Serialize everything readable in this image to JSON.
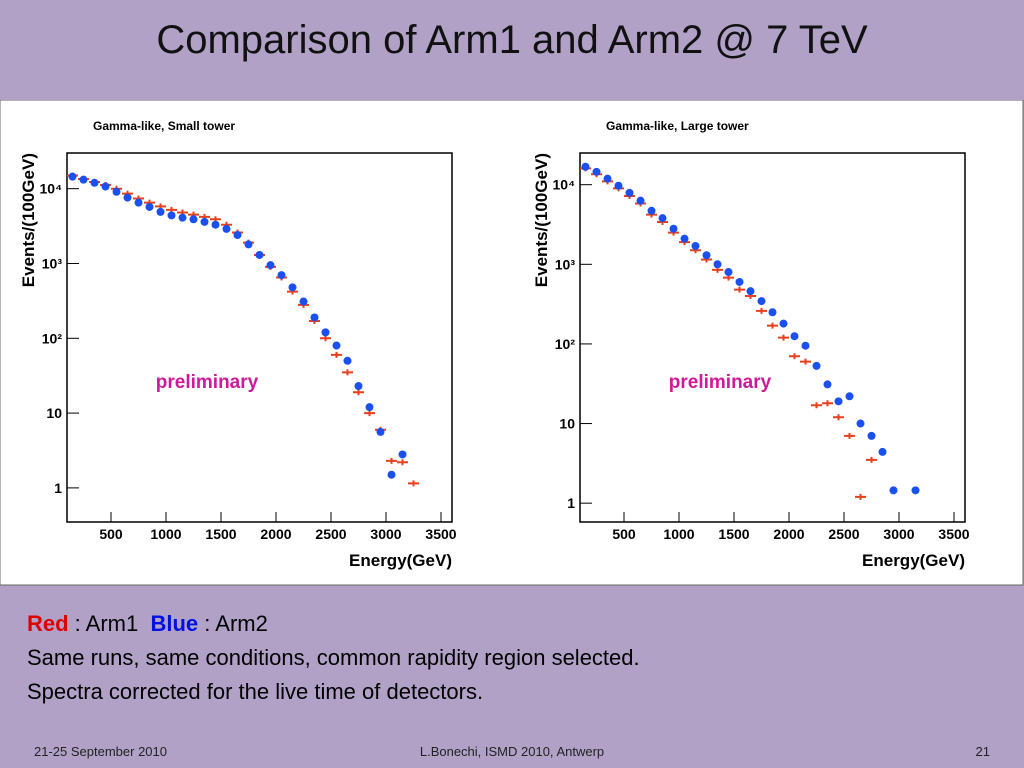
{
  "title": "Comparison of Arm1 and Arm2 @ 7 TeV",
  "chart_data": [
    {
      "type": "scatter",
      "title": "Gamma-like, Small tower",
      "x_label": "Energy(GeV)",
      "y_label": "Events/(100GeV)",
      "annotation": "preliminary",
      "log_y": true,
      "grid": false,
      "xlim": [
        100,
        3600
      ],
      "xticks": [
        500,
        1000,
        1500,
        2000,
        2500,
        3000,
        3500
      ],
      "ylim": [
        0.35,
        30000
      ],
      "yticks": [
        1,
        10,
        {
          "value": 100,
          "label": "10²"
        },
        {
          "value": 1000,
          "label": "10³"
        },
        {
          "value": 10000,
          "label": "10⁴"
        }
      ],
      "x": [
        150,
        250,
        350,
        450,
        550,
        650,
        750,
        850,
        950,
        1050,
        1150,
        1250,
        1350,
        1450,
        1550,
        1650,
        1750,
        1850,
        1950,
        2050,
        2150,
        2250,
        2350,
        2450,
        2550,
        2650,
        2750,
        2850,
        2950,
        3050,
        3150,
        3250
      ],
      "series": [
        {
          "color": "#e8401c",
          "values": [
            15000,
            13500,
            12300,
            11200,
            10000,
            8600,
            7400,
            6500,
            5800,
            5200,
            4800,
            4500,
            4200,
            3900,
            3300,
            2600,
            1900,
            1300,
            900,
            650,
            420,
            280,
            170,
            100,
            60,
            35,
            19,
            10,
            6,
            2.3,
            2.2,
            1.15
          ]
        },
        {
          "color": "#1a4ff0",
          "values": [
            14500,
            13200,
            12000,
            10700,
            9100,
            7600,
            6500,
            5700,
            4900,
            4400,
            4100,
            3900,
            3600,
            3300,
            2900,
            2400,
            1800,
            1300,
            950,
            700,
            480,
            310,
            190,
            120,
            80,
            50,
            23,
            12,
            5.6,
            1.5,
            2.8,
            null
          ]
        }
      ]
    },
    {
      "type": "scatter",
      "title": "Gamma-like, Large tower",
      "x_label": "Energy(GeV)",
      "y_label": "Events/(100GeV)",
      "annotation": "preliminary",
      "log_y": true,
      "grid": false,
      "xlim": [
        100,
        3600
      ],
      "xticks": [
        500,
        1000,
        1500,
        2000,
        2500,
        3000,
        3500
      ],
      "ylim": [
        0.58,
        25000
      ],
      "yticks": [
        1,
        10,
        {
          "value": 100,
          "label": "10²"
        },
        {
          "value": 1000,
          "label": "10³"
        },
        {
          "value": 10000,
          "label": "10⁴"
        }
      ],
      "x": [
        150,
        250,
        350,
        450,
        550,
        650,
        750,
        850,
        950,
        1050,
        1150,
        1250,
        1350,
        1450,
        1550,
        1650,
        1750,
        1850,
        1950,
        2050,
        2150,
        2250,
        2350,
        2450,
        2550,
        2650,
        2750,
        2850,
        2950,
        3050,
        3150,
        3250
      ],
      "series": [
        {
          "color": "#e8401c",
          "values": [
            16000,
            13500,
            11000,
            9000,
            7200,
            5800,
            4200,
            3400,
            2500,
            1900,
            1500,
            1150,
            850,
            680,
            480,
            400,
            260,
            170,
            120,
            70,
            60,
            17,
            18,
            12,
            7,
            1.2,
            3.5,
            null,
            null,
            null,
            null,
            null
          ]
        },
        {
          "color": "#1a4ff0",
          "values": [
            16800,
            14500,
            11900,
            9700,
            7900,
            6300,
            4700,
            3800,
            2800,
            2100,
            1700,
            1300,
            1000,
            800,
            600,
            460,
            345,
            250,
            180,
            125,
            95,
            53,
            31,
            19,
            22,
            10,
            7,
            4.4,
            1.45,
            null,
            1.45,
            null
          ]
        }
      ]
    }
  ],
  "notes": {
    "red": "Red",
    "arm1": " : Arm1",
    "blue": "Blue",
    "arm2": " : Arm2",
    "lines": [
      "Same runs, same conditions, common rapidity region selected.",
      "Spectra corrected for the live time of detectors."
    ]
  },
  "footer": {
    "date": "21-25 September 2010",
    "author": "L.Bonechi, ISMD 2010, Antwerp",
    "page": "21"
  }
}
